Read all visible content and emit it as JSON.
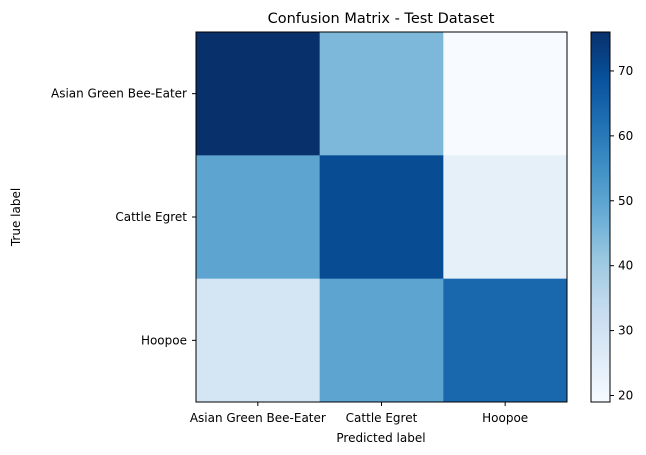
{
  "chart_data": {
    "type": "heatmap",
    "title": "Confusion Matrix - Test Dataset",
    "xlabel": "Predicted label",
    "ylabel": "True label",
    "x_categories": [
      "Asian Green Bee-Eater",
      "Cattle Egret",
      "Hoopoe"
    ],
    "y_categories": [
      "Asian Green Bee-Eater",
      "Cattle Egret",
      "Hoopoe"
    ],
    "values": [
      [
        76,
        45,
        19
      ],
      [
        50,
        70,
        24
      ],
      [
        29,
        50,
        64
      ]
    ],
    "colormap": "Blues",
    "value_range": [
      19,
      76
    ],
    "colorbar": {
      "ticks": [
        20,
        30,
        40,
        50,
        60,
        70
      ]
    },
    "grid": false
  }
}
